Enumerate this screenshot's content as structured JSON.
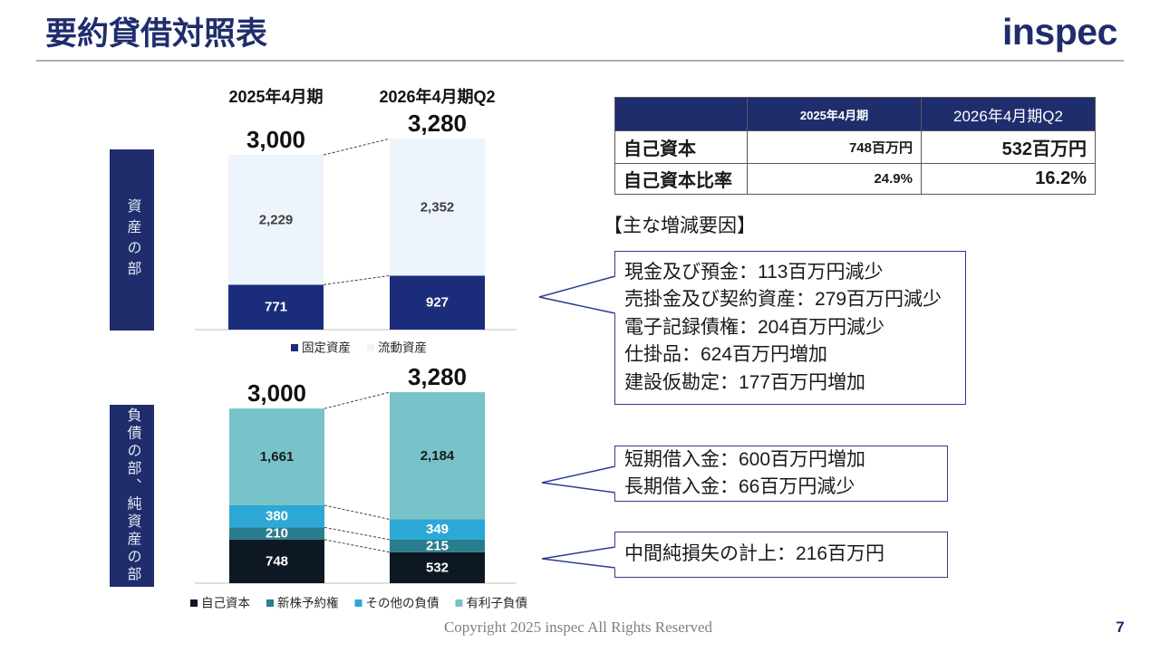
{
  "slide": {
    "title": "要約貸借対照表",
    "logo_text": "inspec",
    "copyright": "Copyright 2025 inspec All Rights Reserved",
    "page_number": "7"
  },
  "colors": {
    "brand_navy": "#1f2d6d",
    "callout_border": "#2e3c8f",
    "section_label_text": "#e3ebf5",
    "rule": "#b0b0b0"
  },
  "sections": {
    "assets": "資産の部",
    "liabilities_and_net_assets": "負債の部、純資産の部"
  },
  "chart_data": [
    {
      "type": "bar",
      "stacked": true,
      "categories": [
        "2025年4月期",
        "2026年4月期Q2"
      ],
      "total_labels": [
        "3,000",
        "3,280"
      ],
      "series": [
        {
          "name": "固定資産",
          "values": [
            771,
            927
          ],
          "labels": [
            "771",
            "927"
          ],
          "color": "#1b2d7a",
          "label_color": "#ffffff"
        },
        {
          "name": "流動資産",
          "values": [
            2229,
            2352
          ],
          "labels": [
            "2,229",
            "2,352"
          ],
          "color": "#eef4fb",
          "label_color": "#404040"
        }
      ],
      "legend": "bottom",
      "grid": false
    },
    {
      "type": "bar",
      "stacked": true,
      "total_labels": [
        "3,000",
        "3,280"
      ],
      "series": [
        {
          "name": "自己資本",
          "values": [
            748,
            532
          ],
          "labels": [
            "748",
            "532"
          ],
          "color": "#0d1824",
          "label_color": "#ffffff"
        },
        {
          "name": "新株予約権",
          "values": [
            210,
            215
          ],
          "labels": [
            "210",
            "215"
          ],
          "color": "#2a7d8d",
          "label_color": "#ffffff"
        },
        {
          "name": "その他の負債",
          "values": [
            380,
            349
          ],
          "labels": [
            "380",
            "349"
          ],
          "color": "#2ba8d6",
          "label_color": "#ffffff"
        },
        {
          "name": "有利子負債",
          "values": [
            1661,
            2184
          ],
          "labels": [
            "1,661",
            "2,184"
          ],
          "color": "#78c2c9",
          "label_color": "#1a1a1a"
        }
      ],
      "legend": "bottom",
      "grid": false
    }
  ],
  "equity_table": {
    "period_headers": [
      "2025年4月期",
      "2026年4月期Q2"
    ],
    "rows": [
      {
        "label": "自己資本",
        "values": [
          "748百万円",
          "532百万円"
        ]
      },
      {
        "label": "自己資本比率",
        "values": [
          "24.9%",
          "16.2%"
        ]
      }
    ]
  },
  "factors": {
    "heading": "【主な増減要因】",
    "assets_callout": [
      "現金及び預金：113百万円減少",
      "売掛金及び契約資産：279百万円減少",
      "電子記録債権：204百万円減少",
      "仕掛品：624百万円増加",
      "建設仮勘定：177百万円増加"
    ],
    "debt_callout": [
      "短期借入金：600百万円増加",
      "長期借入金：66百万円減少"
    ],
    "equity_callout": [
      "中間純損失の計上：216百万円"
    ]
  }
}
